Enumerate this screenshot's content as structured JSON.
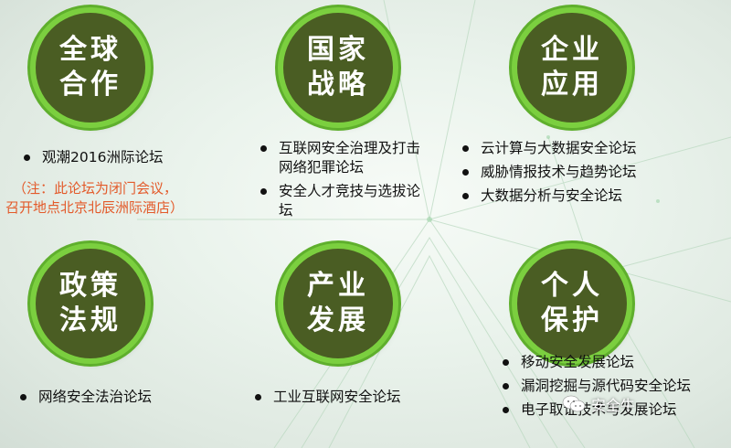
{
  "panels": [
    {
      "title_lines": [
        "全球",
        "合作"
      ],
      "items": [
        "观潮2016洲际论坛"
      ],
      "note_lines": [
        "（注：此论坛为闭门会议，",
        "召开地点北京北辰洲际酒店）"
      ]
    },
    {
      "title_lines": [
        "国家",
        "战略"
      ],
      "items": [
        "互联网安全治理及打击网络犯罪论坛",
        "安全人才竞技与选拔论坛"
      ]
    },
    {
      "title_lines": [
        "企业",
        "应用"
      ],
      "items": [
        "云计算与大数据安全论坛",
        "威胁情报技术与趋势论坛",
        "大数据分析与安全论坛"
      ]
    },
    {
      "title_lines": [
        "政策",
        "法规"
      ],
      "items": [
        "网络安全法治论坛"
      ]
    },
    {
      "title_lines": [
        "产业",
        "发展"
      ],
      "items": [
        "工业互联网安全论坛"
      ]
    },
    {
      "title_lines": [
        "个人",
        "保护"
      ],
      "items": [
        "移动安全发展论坛",
        "漏洞挖掘与源代码安全论坛",
        "电子取证技术与发展论坛"
      ]
    }
  ],
  "watermark": {
    "text": "安全牛",
    "icon": "wechat-icon"
  },
  "colors": {
    "badge_fill": "#4a5d23",
    "badge_ring": "#7bcf3f",
    "note_text": "#e35a2a"
  }
}
